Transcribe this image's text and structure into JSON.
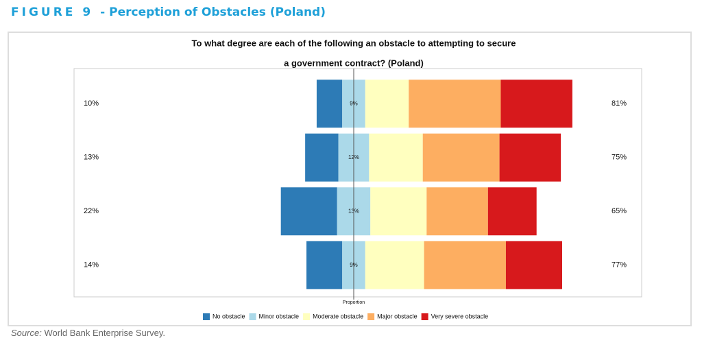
{
  "figure": {
    "label": "FIGURE 9",
    "title": "- Perception of Obstacles (Poland)"
  },
  "source": {
    "label": "Source:",
    "text": "World Bank Enterprise Survey."
  },
  "chart_data": {
    "type": "diverging-bar",
    "title": [
      "To what degree are each of the following an obstacle to attempting to secure",
      "a government contract? (Poland)"
    ],
    "xlabel": "Proportion",
    "categories": [
      null,
      null,
      null,
      null
    ],
    "series": [
      {
        "name": "No obstacle",
        "color": "#2d7bb6",
        "values": [
          10,
          13,
          22,
          14
        ],
        "value_labels": [
          "10%",
          "13%",
          "22%",
          "14%"
        ]
      },
      {
        "name": "Minor obstacle",
        "color": "#abd9e9",
        "values": [
          9,
          12,
          13,
          9
        ],
        "value_labels": [
          "9%",
          "12%",
          "13%",
          "9%"
        ]
      },
      {
        "name": "Moderate obstacle",
        "color": "#ffffbf",
        "values": [
          17,
          21,
          22,
          23
        ]
      },
      {
        "name": "Major obstacle",
        "color": "#fdae61",
        "values": [
          36,
          30,
          24,
          32
        ]
      },
      {
        "name": "Very severe obstacle",
        "color": "#d7191c",
        "values": [
          28,
          24,
          19,
          22
        ]
      }
    ],
    "right_labels": [
      "81%",
      "75%",
      "65%",
      "77%"
    ]
  }
}
